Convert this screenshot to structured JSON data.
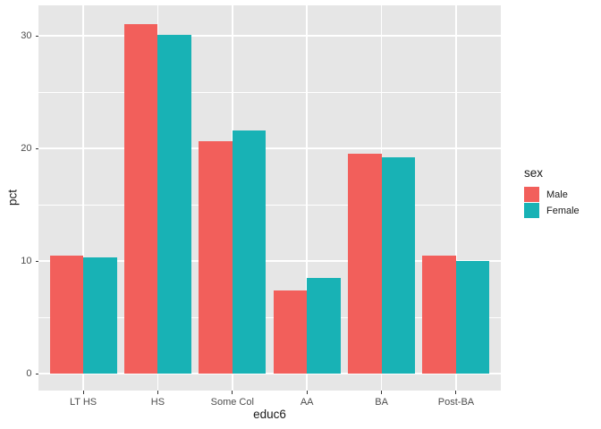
{
  "chart_data": {
    "type": "bar",
    "title": "",
    "xlabel": "educ6",
    "ylabel": "pct",
    "legend_title": "sex",
    "legend_position": "right",
    "grid": true,
    "bar_mode": "dodge",
    "categories": [
      "LT HS",
      "HS",
      "Some Col",
      "AA",
      "BA",
      "Post-BA"
    ],
    "series": [
      {
        "name": "Male",
        "color": "#F25F5B",
        "values": [
          10.5,
          31.0,
          20.6,
          7.4,
          19.5,
          10.5
        ]
      },
      {
        "name": "Female",
        "color": "#18B2B5",
        "values": [
          10.3,
          30.1,
          21.6,
          8.5,
          19.2,
          10.0
        ]
      }
    ],
    "y_ticks": [
      0,
      10,
      20,
      30
    ],
    "y_minor_ticks": [
      5,
      15,
      25
    ],
    "y_range": [
      -1.5,
      32.7
    ],
    "colors": {
      "panel_bg": "#E6E6E6",
      "grid": "#FFFFFF",
      "tick_text": "#4D4D4D",
      "axis_text": "#1A1A1A",
      "tick_mark": "#333333"
    }
  }
}
